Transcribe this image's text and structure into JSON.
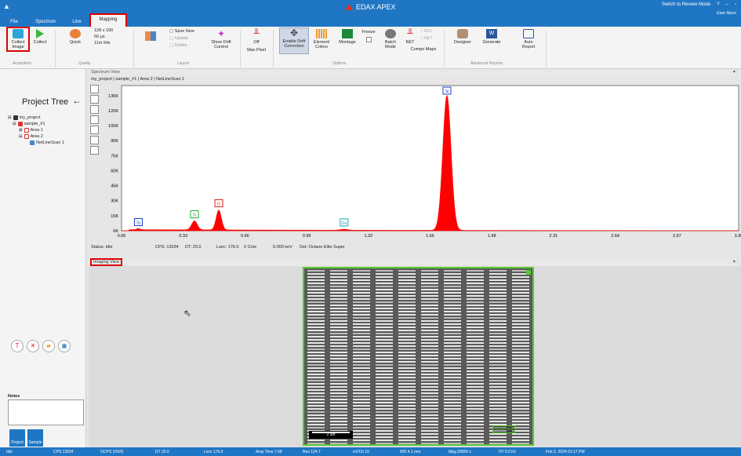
{
  "app": {
    "title": "EDAX APEX",
    "review_mode": "Switch to Review Mode",
    "user": "User Apex"
  },
  "tabs": [
    {
      "label": "File"
    },
    {
      "label": "Spectrum"
    },
    {
      "label": "Line"
    },
    {
      "label": "Mapping"
    }
  ],
  "ribbon": {
    "collect_image": "Collect Image",
    "collect": "Collect",
    "quick": "Quick",
    "resolution": "128 x 100",
    "dwell": "50 μs",
    "time": "11m 54s",
    "save_new": "Save New",
    "update": "Update",
    "delete": "Delete",
    "show_drift": "Show Drift Control",
    "off": "Off",
    "max_pixel": "Max Pixel",
    "enable_drift": "Enable Drift Correction",
    "element_colors": "Element Colors",
    "montage": "Montage",
    "freeze": "Freeze",
    "batch_mode": "Batch Mode",
    "net": "NET",
    "roi": "ROI",
    "net2": "NET",
    "compo_maps": "Compo Maps",
    "designer": "Designer",
    "generate": "Generate",
    "auto_report": "Auto Report",
    "groups": {
      "acquisition": "Acquisition",
      "quality": "Quality",
      "layout": "Layout",
      "options": "Options",
      "advanced": "Advanced Reports"
    }
  },
  "project_tree": {
    "title": "Project Tree",
    "items": [
      {
        "label": "my_project"
      },
      {
        "label": "sample_#1"
      },
      {
        "label": "Area 1"
      },
      {
        "label": "Area 2"
      },
      {
        "label": "NetLineScan 1"
      }
    ]
  },
  "notes_label": "Notes",
  "bottom_buttons": {
    "project": "Project",
    "sample": "Sample"
  },
  "spectrum_view": {
    "header": "Spectrum View",
    "path": "my_project | sample_#1 | Area 2 | NetLineScan 1",
    "status": "Status: Idle",
    "cps": "CPS: 13034",
    "dt": "DT: 20.0",
    "lsec": "Lsec: 176.0",
    "cnts": "0 Cnts",
    "kev": "0.000 keV",
    "det": "Det: Octane Elite Super"
  },
  "chart_data": {
    "type": "area",
    "x_ticks": [
      "0.00",
      "0.33",
      "0.66",
      "0.99",
      "1.32",
      "1.65",
      "1.98",
      "2.31",
      "2.64",
      "2.97",
      "3.30"
    ],
    "y_ticks": [
      "0K",
      "15K",
      "30K",
      "45K",
      "60K",
      "75K",
      "90K",
      "105K",
      "120K",
      "135K"
    ],
    "xlim": [
      0,
      3.3
    ],
    "ylim": [
      0,
      145000
    ],
    "peaks": [
      {
        "label": "Si",
        "x": 0.09,
        "y": 1200
      },
      {
        "label": "N",
        "x": 0.39,
        "y": 9000
      },
      {
        "label": "O",
        "x": 0.52,
        "y": 20000
      },
      {
        "label": "Ge",
        "x": 1.19,
        "y": 900
      },
      {
        "label": "Si",
        "x": 1.74,
        "y": 135000
      }
    ],
    "color": "#ff0000"
  },
  "imaging_view": {
    "header": "Imaging View",
    "scale": "2 um",
    "overlay": "10.12 μm"
  },
  "statusbar": {
    "state": "Idle",
    "cps": "CPS 13034",
    "ocps": "OCPS 10425",
    "dt": "DT 20.0",
    "lsec": "Lsec 176.0",
    "amp": "Amp Time 7.68",
    "res": "Res 124.7",
    "evch": "eV/Ch 10",
    "wd": "WD 4.1 mm",
    "mag": "Mag 20000 x",
    "ht": "HT 5.0 kV",
    "date": "Feb 2, 2024 01:17 PM"
  }
}
